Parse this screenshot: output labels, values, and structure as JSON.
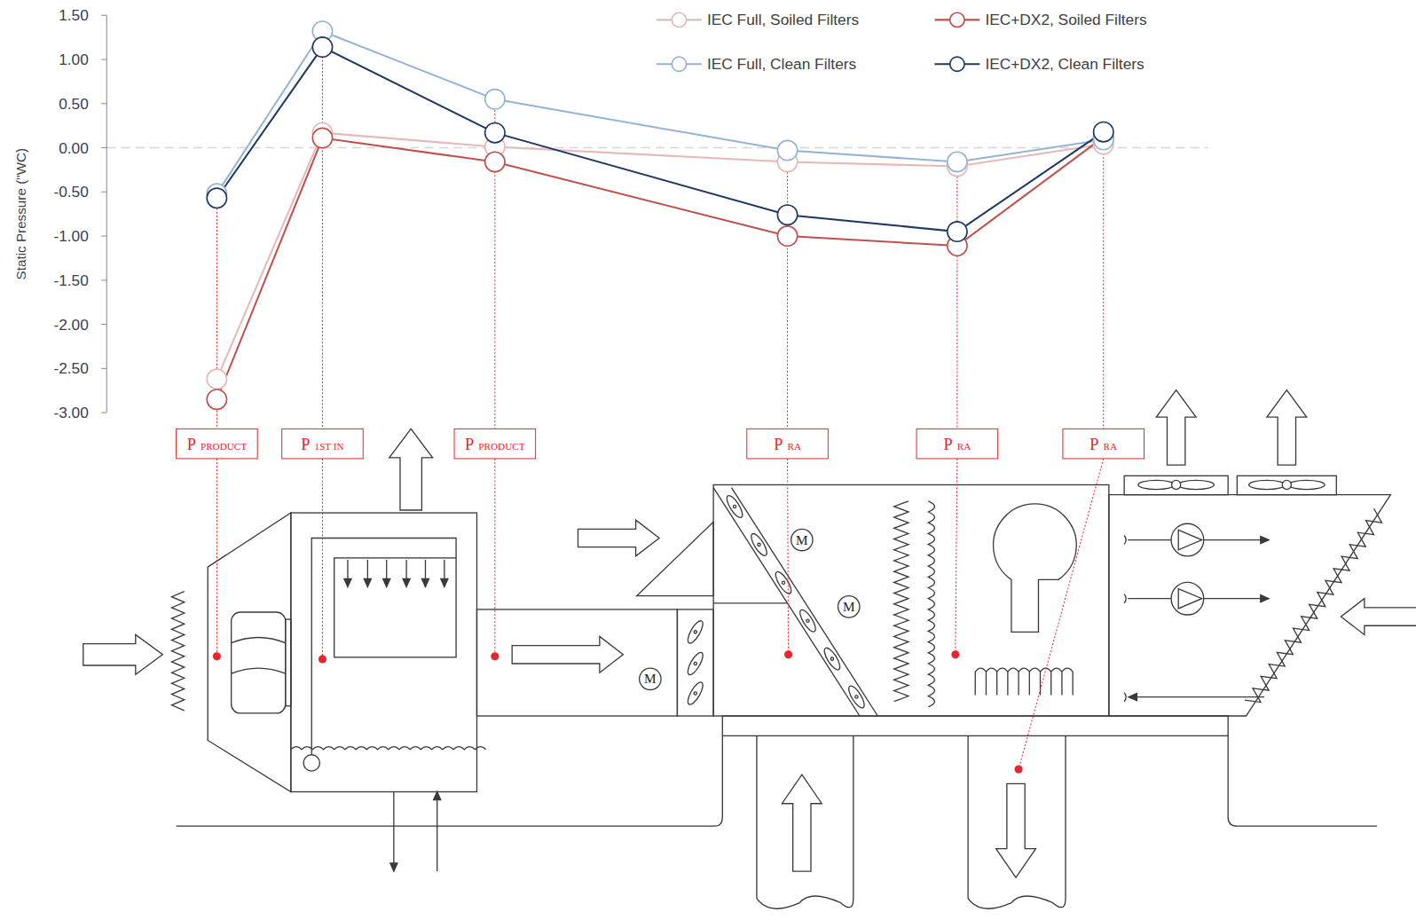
{
  "chart_data": {
    "type": "line",
    "y_label": "Static Pressure (\"WC)",
    "categories": [
      "P PRODUCT",
      "P 1ST IN",
      "P PRODUCT",
      "P RA",
      "P RA",
      "P RA"
    ],
    "series": [
      {
        "name": "IEC Full, Soiled Filters",
        "color": "#e6b9b8",
        "values": [
          -2.62,
          0.17,
          0.01,
          -0.16,
          -0.21,
          0.04
        ]
      },
      {
        "name": "IEC+DX2, Soiled Filters",
        "color": "#c0504d",
        "values": [
          -2.85,
          0.11,
          -0.16,
          -1.0,
          -1.11,
          0.12
        ]
      },
      {
        "name": "IEC Full, Clean Filters",
        "color": "#95b3d7",
        "values": [
          -0.52,
          1.32,
          0.55,
          -0.03,
          -0.16,
          0.09
        ]
      },
      {
        "name": "IEC+DX2, Clean Filters",
        "color": "#1f3864",
        "values": [
          -0.57,
          1.14,
          0.17,
          -0.76,
          -0.95,
          0.18
        ]
      }
    ],
    "ylim": [
      -3,
      1.5
    ],
    "yticks": [
      {
        "value": -3,
        "label": "-3.00"
      },
      {
        "value": -2.5,
        "label": "-2.50"
      },
      {
        "value": -2,
        "label": "-2.00"
      },
      {
        "value": -1.5,
        "label": "-1.50"
      },
      {
        "value": -1,
        "label": "-1.00"
      },
      {
        "value": -0.5,
        "label": "-0.50"
      },
      {
        "value": 0,
        "label": "0.00"
      },
      {
        "value": 0.5,
        "label": "0.50"
      },
      {
        "value": 1,
        "label": "1.00"
      },
      {
        "value": 1.5,
        "label": "1.50"
      }
    ],
    "reference_line": 0,
    "marker": "circle",
    "legend": "upper right",
    "grid": false
  },
  "diagram": {
    "motor_labels": [
      "M",
      "M",
      "M"
    ]
  }
}
